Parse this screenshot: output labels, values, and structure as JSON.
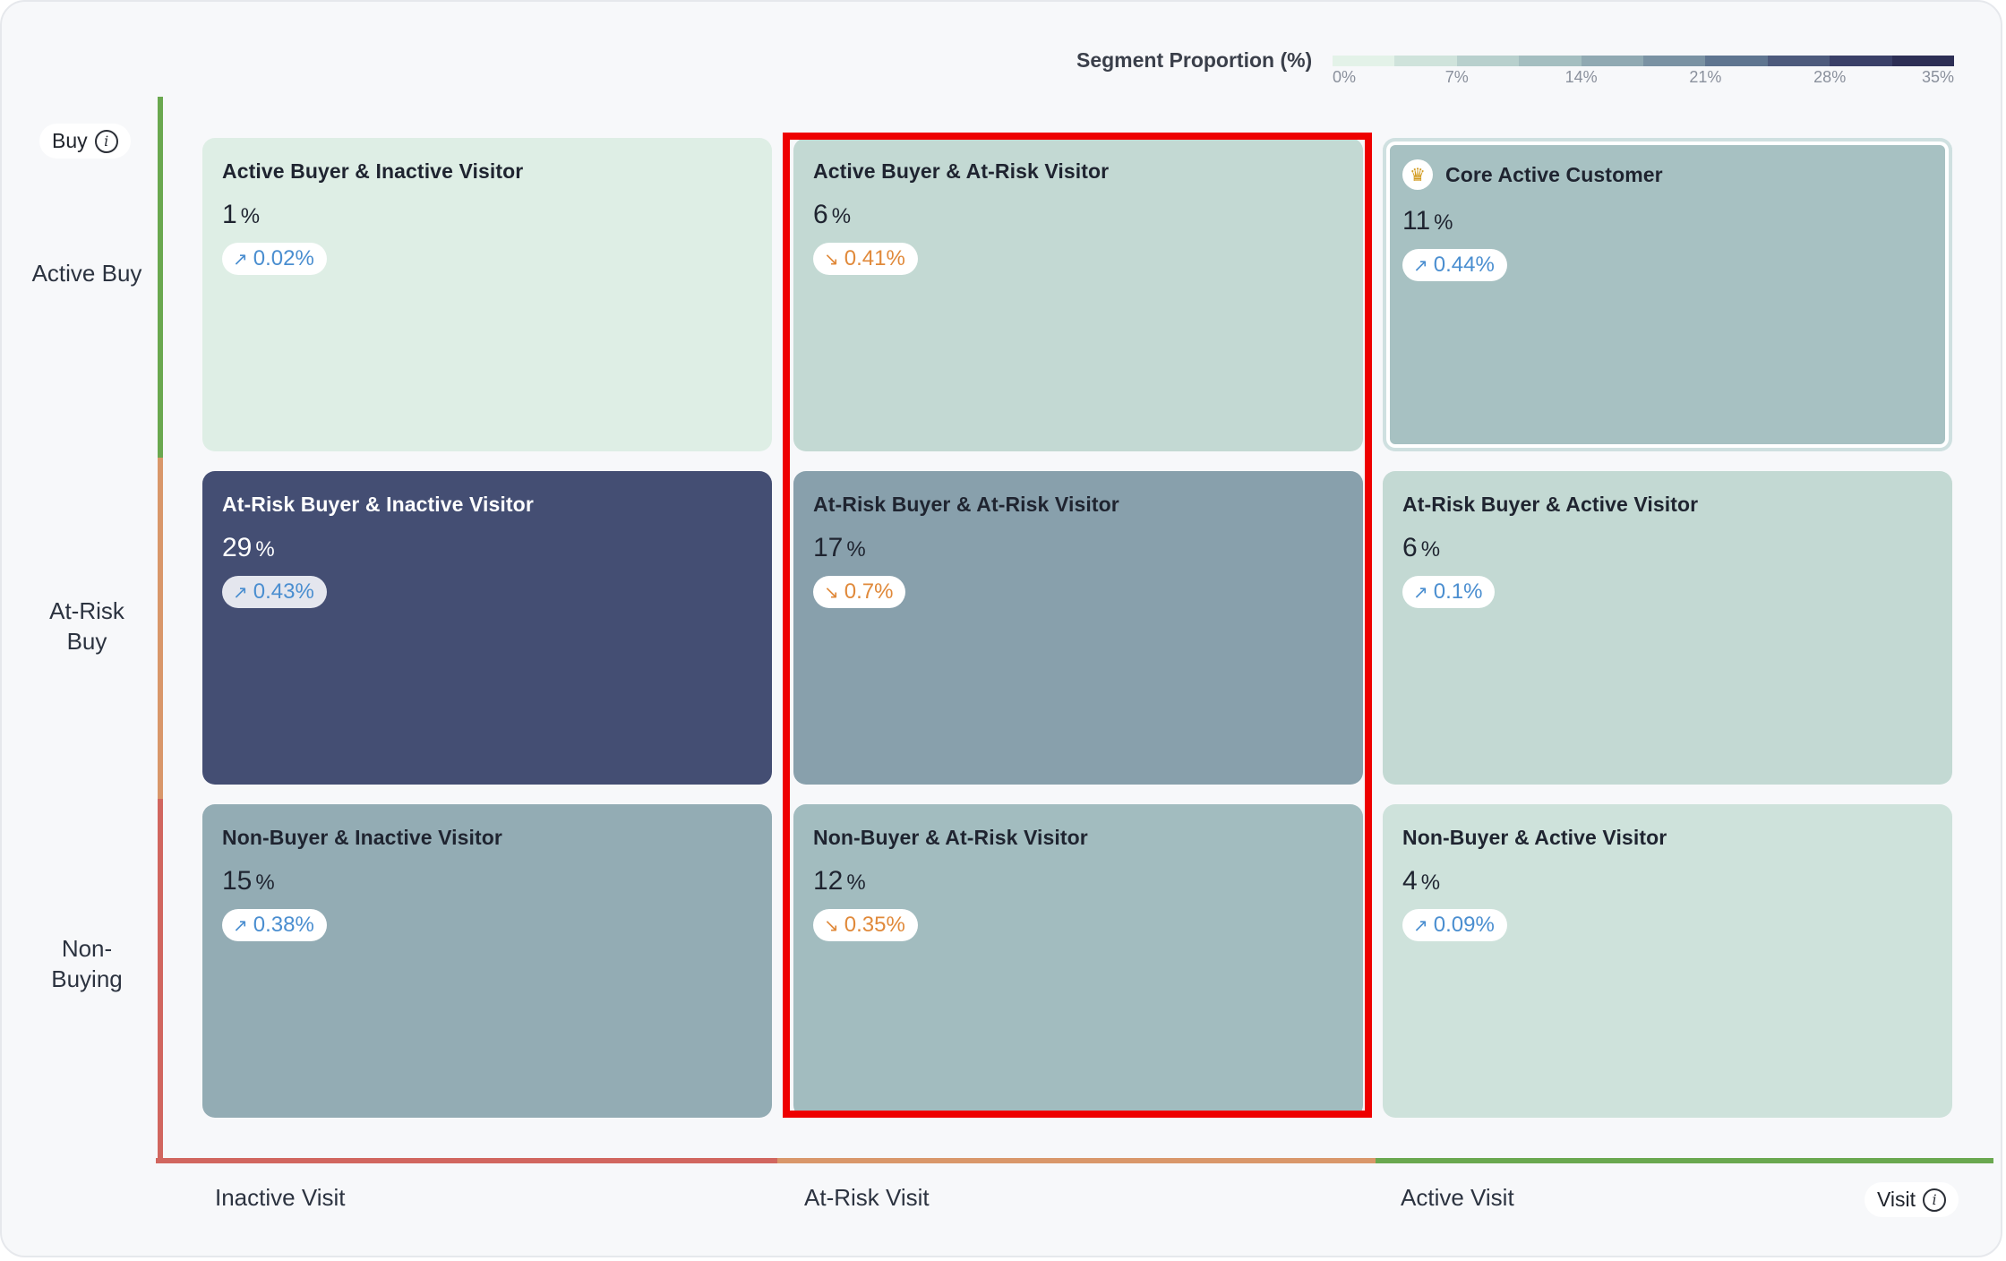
{
  "legend": {
    "title": "Segment Proportion (%)",
    "ticks": [
      "0%",
      "7%",
      "14%",
      "21%",
      "28%",
      "35%"
    ],
    "colors": [
      "#e3f2e8",
      "#cfe3db",
      "#b8d0cd",
      "#a4bec0",
      "#90a9b2",
      "#7a92a3",
      "#5f7590",
      "#4d5a7c",
      "#3a4068",
      "#2d2f55"
    ]
  },
  "axes": {
    "y_title": "Buy",
    "x_title": "Visit",
    "rows": [
      "Active Buy",
      "At-Risk Buy",
      "Non-Buying"
    ],
    "cols": [
      "Inactive Visit",
      "At-Risk Visit",
      "Active Visit"
    ],
    "row_colors": [
      "#6aa84f",
      "#d9976a",
      "#d1665f"
    ],
    "col_colors": [
      "#d1665f",
      "#d9976a",
      "#6aa84f"
    ]
  },
  "chart_data": {
    "type": "heatmap",
    "title": "",
    "xlabel": "Visit",
    "ylabel": "Buy",
    "x_categories": [
      "Inactive Visit",
      "At-Risk Visit",
      "Active Visit"
    ],
    "y_categories": [
      "Active Buy",
      "At-Risk Buy",
      "Non-Buying"
    ],
    "color_scale": {
      "label": "Segment Proportion (%)",
      "min": 0,
      "max": 35
    },
    "highlighted_column": "At-Risk Visit",
    "cells": [
      {
        "row": "Active Buy",
        "col": "Inactive Visit",
        "name": "Active Buyer & Inactive Visitor",
        "value": 1,
        "change": "0.02%",
        "direction": "up"
      },
      {
        "row": "Active Buy",
        "col": "At-Risk Visit",
        "name": "Active Buyer & At-Risk Visitor",
        "value": 6,
        "change": "0.41%",
        "direction": "down"
      },
      {
        "row": "Active Buy",
        "col": "Active Visit",
        "name": "Core Active Customer",
        "value": 11,
        "change": "0.44%",
        "direction": "up",
        "icon": "crown-icon"
      },
      {
        "row": "At-Risk Buy",
        "col": "Inactive Visit",
        "name": "At-Risk Buyer & Inactive Visitor",
        "value": 29,
        "change": "0.43%",
        "direction": "up"
      },
      {
        "row": "At-Risk Buy",
        "col": "At-Risk Visit",
        "name": "At-Risk Buyer & At-Risk Visitor",
        "value": 17,
        "change": "0.7%",
        "direction": "down"
      },
      {
        "row": "At-Risk Buy",
        "col": "Active Visit",
        "name": "At-Risk Buyer & Active Visitor",
        "value": 6,
        "change": "0.1%",
        "direction": "up"
      },
      {
        "row": "Non-Buying",
        "col": "Inactive Visit",
        "name": "Non-Buyer & Inactive Visitor",
        "value": 15,
        "change": "0.38%",
        "direction": "up"
      },
      {
        "row": "Non-Buying",
        "col": "At-Risk Visit",
        "name": "Non-Buyer & At-Risk Visitor",
        "value": 12,
        "change": "0.35%",
        "direction": "down"
      },
      {
        "row": "Non-Buying",
        "col": "Active Visit",
        "name": "Non-Buyer & Active Visitor",
        "value": 4,
        "change": "0.09%",
        "direction": "up"
      }
    ]
  }
}
